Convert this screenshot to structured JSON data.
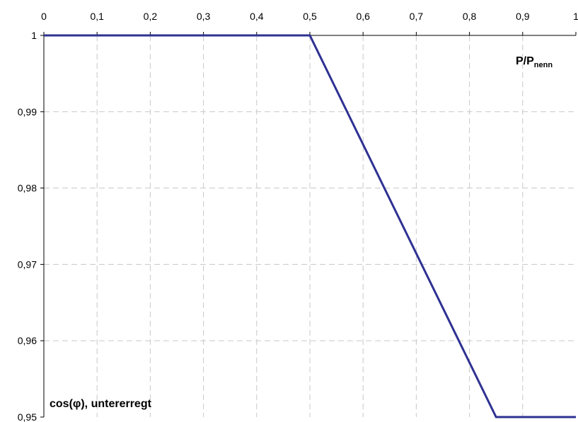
{
  "chart_data": {
    "type": "line",
    "title": "",
    "xlabel": {
      "main": "P/P",
      "sub": "nenn"
    },
    "ylabel": "cos(φ), untererregt",
    "x_axis_position": "top",
    "xlim": [
      0,
      1
    ],
    "ylim": [
      0.95,
      1
    ],
    "x_ticks": [
      "0",
      "0,1",
      "0,2",
      "0,3",
      "0,4",
      "0,5",
      "0,6",
      "0,7",
      "0,8",
      "0,9",
      "1"
    ],
    "x_tick_values": [
      0,
      0.1,
      0.2,
      0.3,
      0.4,
      0.5,
      0.6,
      0.7,
      0.8,
      0.9,
      1
    ],
    "y_ticks": [
      "1",
      "0,99",
      "0,98",
      "0,97",
      "0,96",
      "0,95"
    ],
    "y_tick_values": [
      1,
      0.99,
      0.98,
      0.97,
      0.96,
      0.95
    ],
    "grid": true,
    "grid_style": "dashed",
    "series": [
      {
        "color": "#2e3192",
        "x": [
          0,
          0.5,
          0.85,
          1
        ],
        "y": [
          1,
          1,
          0.95,
          0.95
        ]
      }
    ]
  }
}
